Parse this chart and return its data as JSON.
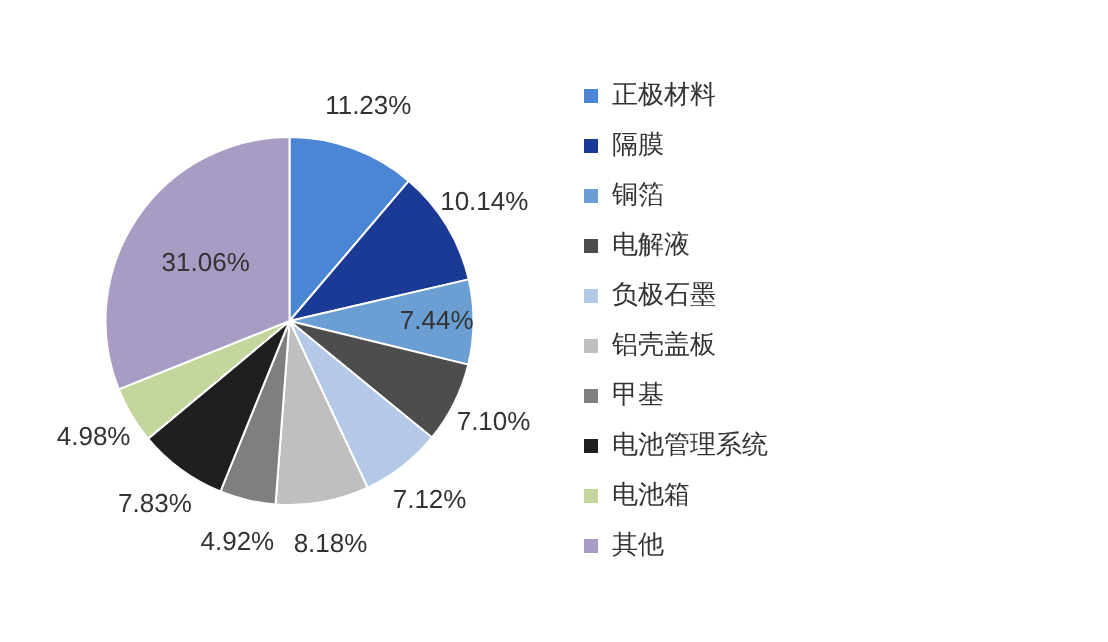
{
  "chart_data": {
    "type": "pie",
    "categories": [
      "正极材料",
      "隔膜",
      "铜箔",
      "电解液",
      "负极石墨",
      "铝壳盖板",
      "甲基",
      "电池管理系统",
      "电池箱",
      "其他"
    ],
    "values": [
      11.23,
      10.14,
      7.44,
      7.1,
      7.12,
      8.18,
      4.92,
      7.83,
      4.98,
      31.06
    ],
    "colors": [
      "#4a86d4",
      "#1a3a96",
      "#6b9fd4",
      "#4d4d4d",
      "#b4c8e8",
      "#bfbfbf",
      "#7f7f7f",
      "#1f1f1f",
      "#c3d69b",
      "#a89cc4"
    ],
    "value_labels": [
      "11.23%",
      "10.14%",
      "7.44%",
      "7.10%",
      "7.12%",
      "8.18%",
      "4.92%",
      "7.83%",
      "4.98%",
      "31.06%"
    ],
    "legend": "right"
  }
}
